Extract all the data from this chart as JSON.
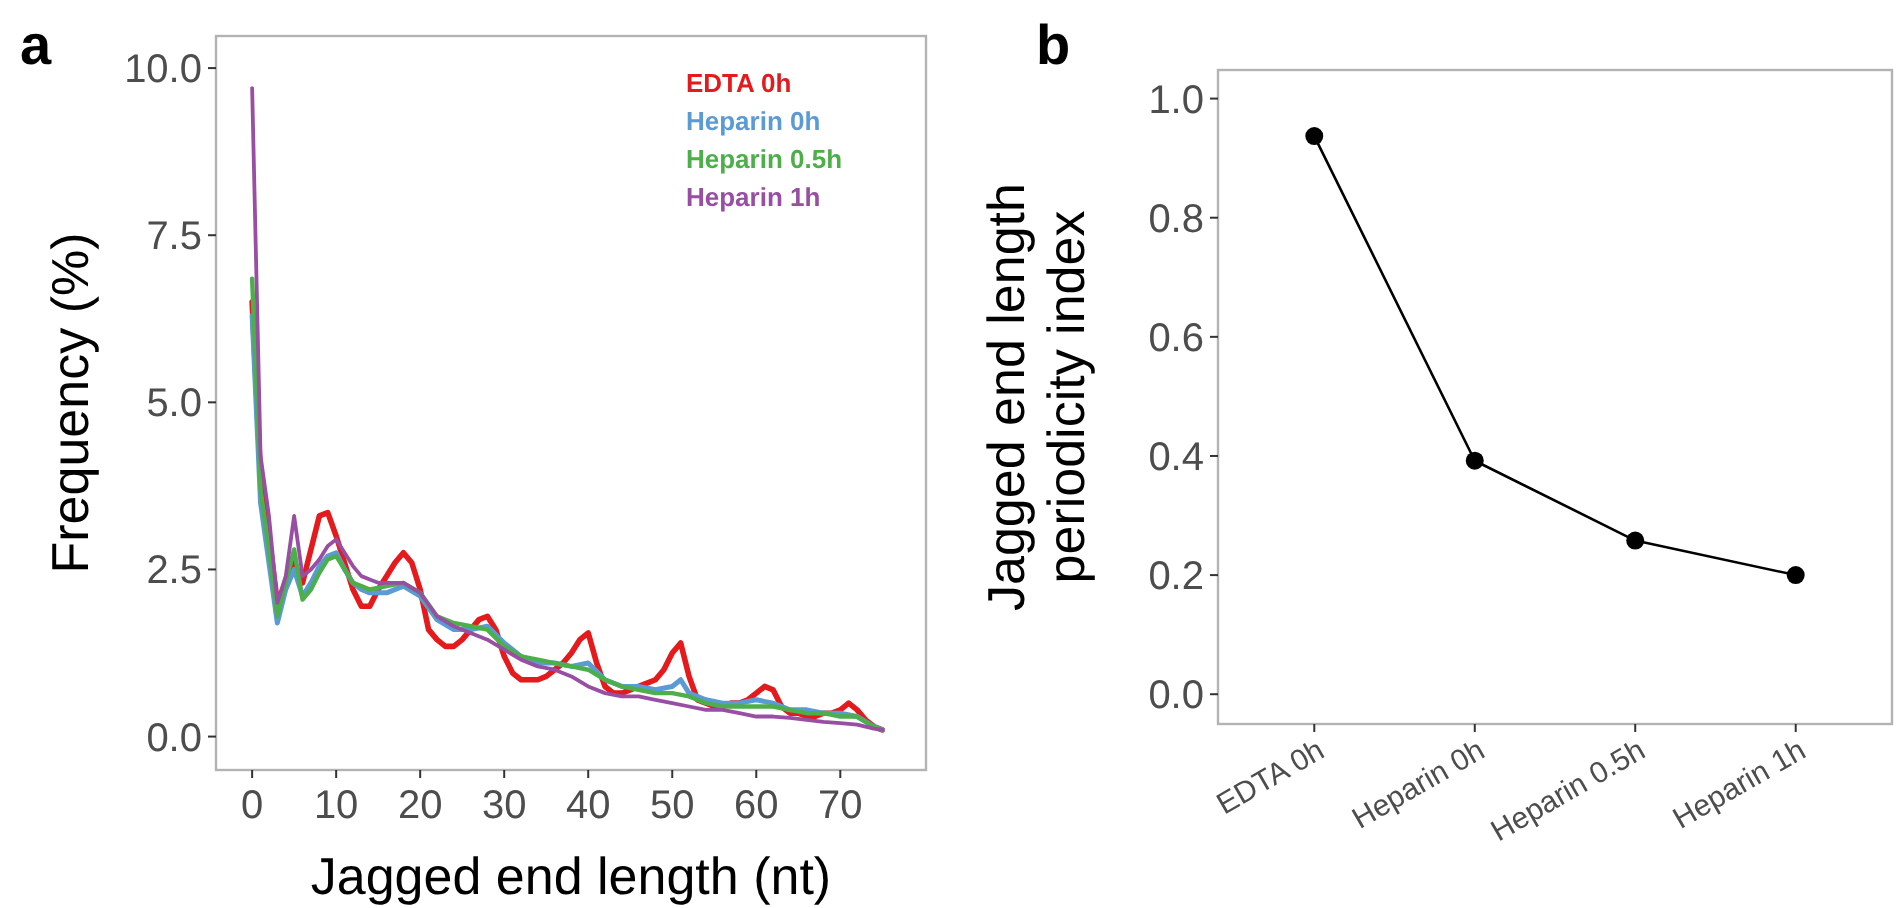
{
  "chart_data": [
    {
      "type": "line",
      "title": "a",
      "xlabel": "Jagged end length  (nt)",
      "ylabel": "Frequency (%)",
      "xlim": [
        -4.3,
        80.2
      ],
      "ylim": [
        -0.5,
        10.48
      ],
      "xticks": [
        0,
        10,
        20,
        30,
        40,
        50,
        60,
        70
      ],
      "yticks": [
        {
          "value": 0,
          "label": "0.0"
        },
        {
          "value": 2.5,
          "label": "2.5"
        },
        {
          "value": 5,
          "label": "5.0"
        },
        {
          "value": 7.5,
          "label": "7.5"
        },
        {
          "value": 10,
          "label": "10.0"
        }
      ],
      "grid": false,
      "legend": "top right",
      "marker": "none",
      "line_style": "solid",
      "series": [
        {
          "name": "EDTA 0h",
          "color": "#e41a1c",
          "x": [
            0,
            1,
            2,
            3,
            4,
            5,
            6,
            7,
            8,
            9,
            10,
            11,
            12,
            13,
            14,
            15,
            16,
            17,
            18,
            19,
            20,
            21,
            22,
            23,
            24,
            25,
            26,
            27,
            28,
            29,
            30,
            31,
            32,
            33,
            34,
            35,
            36,
            37,
            38,
            39,
            40,
            41,
            42,
            43,
            44,
            45,
            46,
            47,
            48,
            49,
            50,
            51,
            52,
            53,
            54,
            55,
            56,
            57,
            58,
            59,
            60,
            61,
            62,
            63,
            64,
            65,
            66,
            67,
            68,
            69,
            70,
            71,
            72,
            73,
            74,
            75
          ],
          "values": [
            6.5,
            3.9,
            3.0,
            2.0,
            2.3,
            2.6,
            2.3,
            2.8,
            3.3,
            3.35,
            3.0,
            2.6,
            2.2,
            1.95,
            1.95,
            2.2,
            2.4,
            2.6,
            2.75,
            2.6,
            2.2,
            1.6,
            1.45,
            1.35,
            1.35,
            1.45,
            1.6,
            1.75,
            1.8,
            1.6,
            1.2,
            0.95,
            0.85,
            0.85,
            0.85,
            0.9,
            1.0,
            1.1,
            1.25,
            1.45,
            1.55,
            1.1,
            0.75,
            0.65,
            0.65,
            0.7,
            0.75,
            0.8,
            0.85,
            1.0,
            1.25,
            1.4,
            0.9,
            0.55,
            0.5,
            0.45,
            0.45,
            0.5,
            0.5,
            0.55,
            0.65,
            0.75,
            0.7,
            0.45,
            0.35,
            0.35,
            0.3,
            0.3,
            0.35,
            0.35,
            0.4,
            0.5,
            0.4,
            0.25,
            0.15,
            0.1
          ]
        },
        {
          "name": "Heparin 0h",
          "color": "#5b9bd5",
          "x": [
            0,
            1,
            2,
            3,
            4,
            5,
            6,
            7,
            8,
            9,
            10,
            11,
            12,
            13,
            14,
            16,
            18,
            20,
            22,
            24,
            26,
            28,
            30,
            32,
            34,
            36,
            38,
            40,
            42,
            44,
            46,
            48,
            50,
            51,
            52,
            54,
            56,
            58,
            60,
            62,
            64,
            66,
            68,
            70,
            72,
            74,
            75
          ],
          "values": [
            6.3,
            3.5,
            2.6,
            1.7,
            2.2,
            2.5,
            2.1,
            2.3,
            2.55,
            2.7,
            2.75,
            2.5,
            2.3,
            2.2,
            2.15,
            2.15,
            2.25,
            2.1,
            1.75,
            1.6,
            1.6,
            1.65,
            1.4,
            1.2,
            1.1,
            1.1,
            1.05,
            1.1,
            0.85,
            0.75,
            0.75,
            0.7,
            0.75,
            0.85,
            0.65,
            0.55,
            0.5,
            0.5,
            0.55,
            0.5,
            0.4,
            0.4,
            0.35,
            0.35,
            0.3,
            0.15,
            0.1
          ]
        },
        {
          "name": "Heparin 0.5h",
          "color": "#4daf4a",
          "x": [
            0,
            1,
            2,
            3,
            4,
            5,
            6,
            7,
            8,
            9,
            10,
            11,
            12,
            13,
            14,
            16,
            18,
            20,
            22,
            24,
            26,
            28,
            30,
            32,
            34,
            36,
            38,
            40,
            42,
            44,
            46,
            48,
            50,
            52,
            54,
            56,
            58,
            60,
            62,
            64,
            66,
            68,
            70,
            72,
            74,
            75
          ],
          "values": [
            6.85,
            3.7,
            2.8,
            1.8,
            2.3,
            2.8,
            2.05,
            2.2,
            2.45,
            2.65,
            2.7,
            2.5,
            2.3,
            2.25,
            2.2,
            2.25,
            2.3,
            2.15,
            1.8,
            1.7,
            1.65,
            1.6,
            1.35,
            1.2,
            1.15,
            1.1,
            1.05,
            1.0,
            0.85,
            0.75,
            0.7,
            0.65,
            0.65,
            0.6,
            0.5,
            0.45,
            0.45,
            0.45,
            0.45,
            0.4,
            0.35,
            0.35,
            0.3,
            0.3,
            0.15,
            0.1
          ]
        },
        {
          "name": "Heparin 1h",
          "color": "#984ea3",
          "x": [
            0,
            1,
            2,
            3,
            4,
            5,
            6,
            7,
            8,
            9,
            10,
            11,
            12,
            13,
            14,
            15,
            16,
            17,
            18,
            20,
            22,
            24,
            26,
            28,
            30,
            32,
            34,
            36,
            38,
            40,
            42,
            44,
            46,
            48,
            50,
            52,
            54,
            56,
            58,
            60,
            62,
            64,
            66,
            68,
            70,
            72,
            74,
            75
          ],
          "values": [
            9.7,
            4.2,
            3.3,
            2.0,
            2.4,
            3.3,
            2.4,
            2.5,
            2.65,
            2.85,
            2.95,
            2.75,
            2.55,
            2.4,
            2.35,
            2.3,
            2.3,
            2.3,
            2.3,
            2.15,
            1.8,
            1.65,
            1.55,
            1.45,
            1.3,
            1.15,
            1.05,
            1.0,
            0.9,
            0.75,
            0.65,
            0.6,
            0.6,
            0.55,
            0.5,
            0.45,
            0.4,
            0.4,
            0.35,
            0.3,
            0.3,
            0.28,
            0.25,
            0.22,
            0.2,
            0.18,
            0.12,
            0.1
          ]
        }
      ]
    },
    {
      "type": "line",
      "title": "b",
      "ylabel": "Jagged end length\nperiodicity index",
      "categories": [
        "EDTA 0h",
        "Heparin 0h",
        "Heparin 0.5h",
        "Heparin 1h"
      ],
      "ylim": [
        -0.05,
        1.048
      ],
      "yticks": [
        {
          "value": 0,
          "label": "0.0"
        },
        {
          "value": 0.2,
          "label": "0.2"
        },
        {
          "value": 0.4,
          "label": "0.4"
        },
        {
          "value": 0.6,
          "label": "0.6"
        },
        {
          "value": 0.8,
          "label": "0.8"
        },
        {
          "value": 1,
          "label": "1.0"
        }
      ],
      "grid": false,
      "legend": false,
      "marker": "circle",
      "line_style": "solid",
      "series": [
        {
          "color": "#000000",
          "values": [
            0.937,
            0.392,
            0.258,
            0.2
          ]
        }
      ]
    }
  ]
}
